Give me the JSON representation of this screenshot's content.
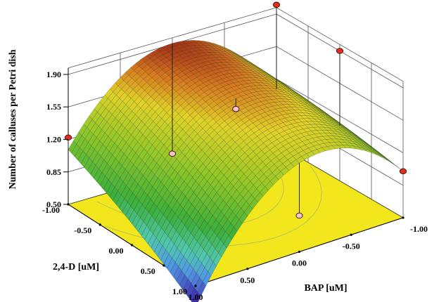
{
  "chart_data": {
    "type": "surface3d",
    "title": "",
    "zlabel": "Number of calluses per Petri dish",
    "x_label": "BAP [uM]",
    "y_label": "2,4-D [uM]",
    "x_range": [
      -1,
      1
    ],
    "y_range": [
      -1,
      1
    ],
    "z_range": [
      0.5,
      1.9
    ],
    "x_ticks": [
      "-1.00",
      "-0.50",
      "0.00",
      "0.50",
      "1.00"
    ],
    "y_ticks": [
      "-1.00",
      "-0.50",
      "0.00",
      "0.50",
      "1.00"
    ],
    "z_ticks": [
      "0.50",
      "0.85",
      "1.20",
      "1.55",
      "1.90"
    ],
    "surface_corners": {
      "bap_-1_24d_-1": 1.09,
      "bap_1_24d_-1": 1.09,
      "bap_-1_24d_1": 1.0,
      "bap_1_24d_1": 0.27
    },
    "design_points": [
      {
        "bap": 1,
        "d24": -1,
        "z": 1.22
      },
      {
        "bap": 0,
        "d24": -1,
        "z": 0.72
      },
      {
        "bap": -1,
        "d24": -1,
        "z": 2.0
      },
      {
        "bap": -1,
        "d24": 0,
        "z": 1.9
      },
      {
        "bap": -1,
        "d24": 1,
        "z": 1.0
      },
      {
        "bap": 0,
        "d24": 0,
        "z": 1.62
      },
      {
        "bap": 1,
        "d24": 1,
        "z": 0.27
      },
      {
        "bap": 0,
        "d24": 1,
        "z": 0.89
      }
    ],
    "colors": {
      "floor": "#f2e61c",
      "contour": "#b9c45a",
      "point": "#e03020",
      "point_below": "#f4c8c8"
    }
  }
}
